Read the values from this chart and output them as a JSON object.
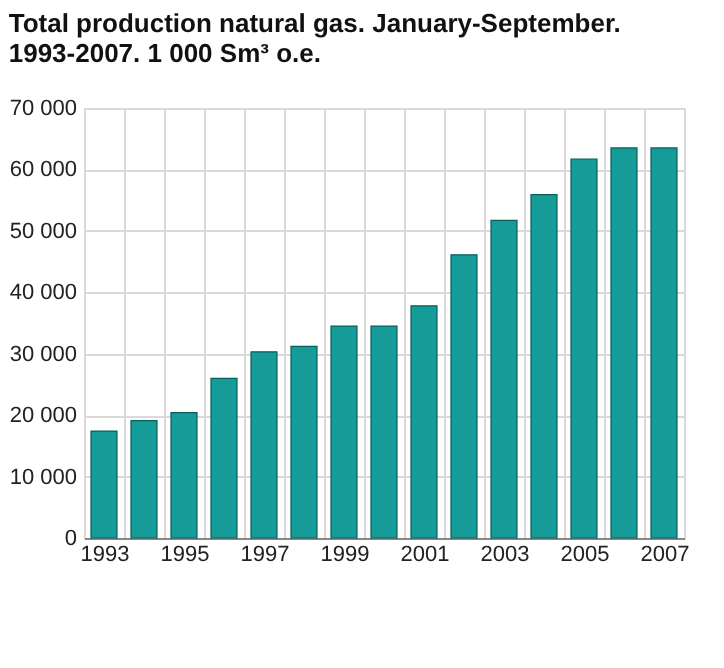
{
  "chart_data": {
    "type": "bar",
    "title": [
      "Total production natural gas. January-September.",
      "1993-2007. 1 000 Sm³ o.e."
    ],
    "categories": [
      "1993",
      null,
      "1995",
      null,
      "1997",
      null,
      "1999",
      null,
      "2001",
      null,
      "2003",
      null,
      "2005",
      null,
      "2007"
    ],
    "values": [
      17400,
      19100,
      20400,
      26000,
      30300,
      31200,
      34500,
      34500,
      37800,
      46100,
      51700,
      55900,
      61700,
      63500,
      63500
    ],
    "color": "#169c98",
    "ylim": [
      0,
      70000
    ],
    "yticks": [
      {
        "value": 0,
        "label": "0"
      },
      {
        "value": 10000,
        "label": "10 000"
      },
      {
        "value": 20000,
        "label": "20 000"
      },
      {
        "value": 30000,
        "label": "30 000"
      },
      {
        "value": 40000,
        "label": "40 000"
      },
      {
        "value": 50000,
        "label": "50 000"
      },
      {
        "value": 60000,
        "label": "60 000"
      },
      {
        "value": 70000,
        "label": "70 000"
      }
    ],
    "grid": true
  }
}
